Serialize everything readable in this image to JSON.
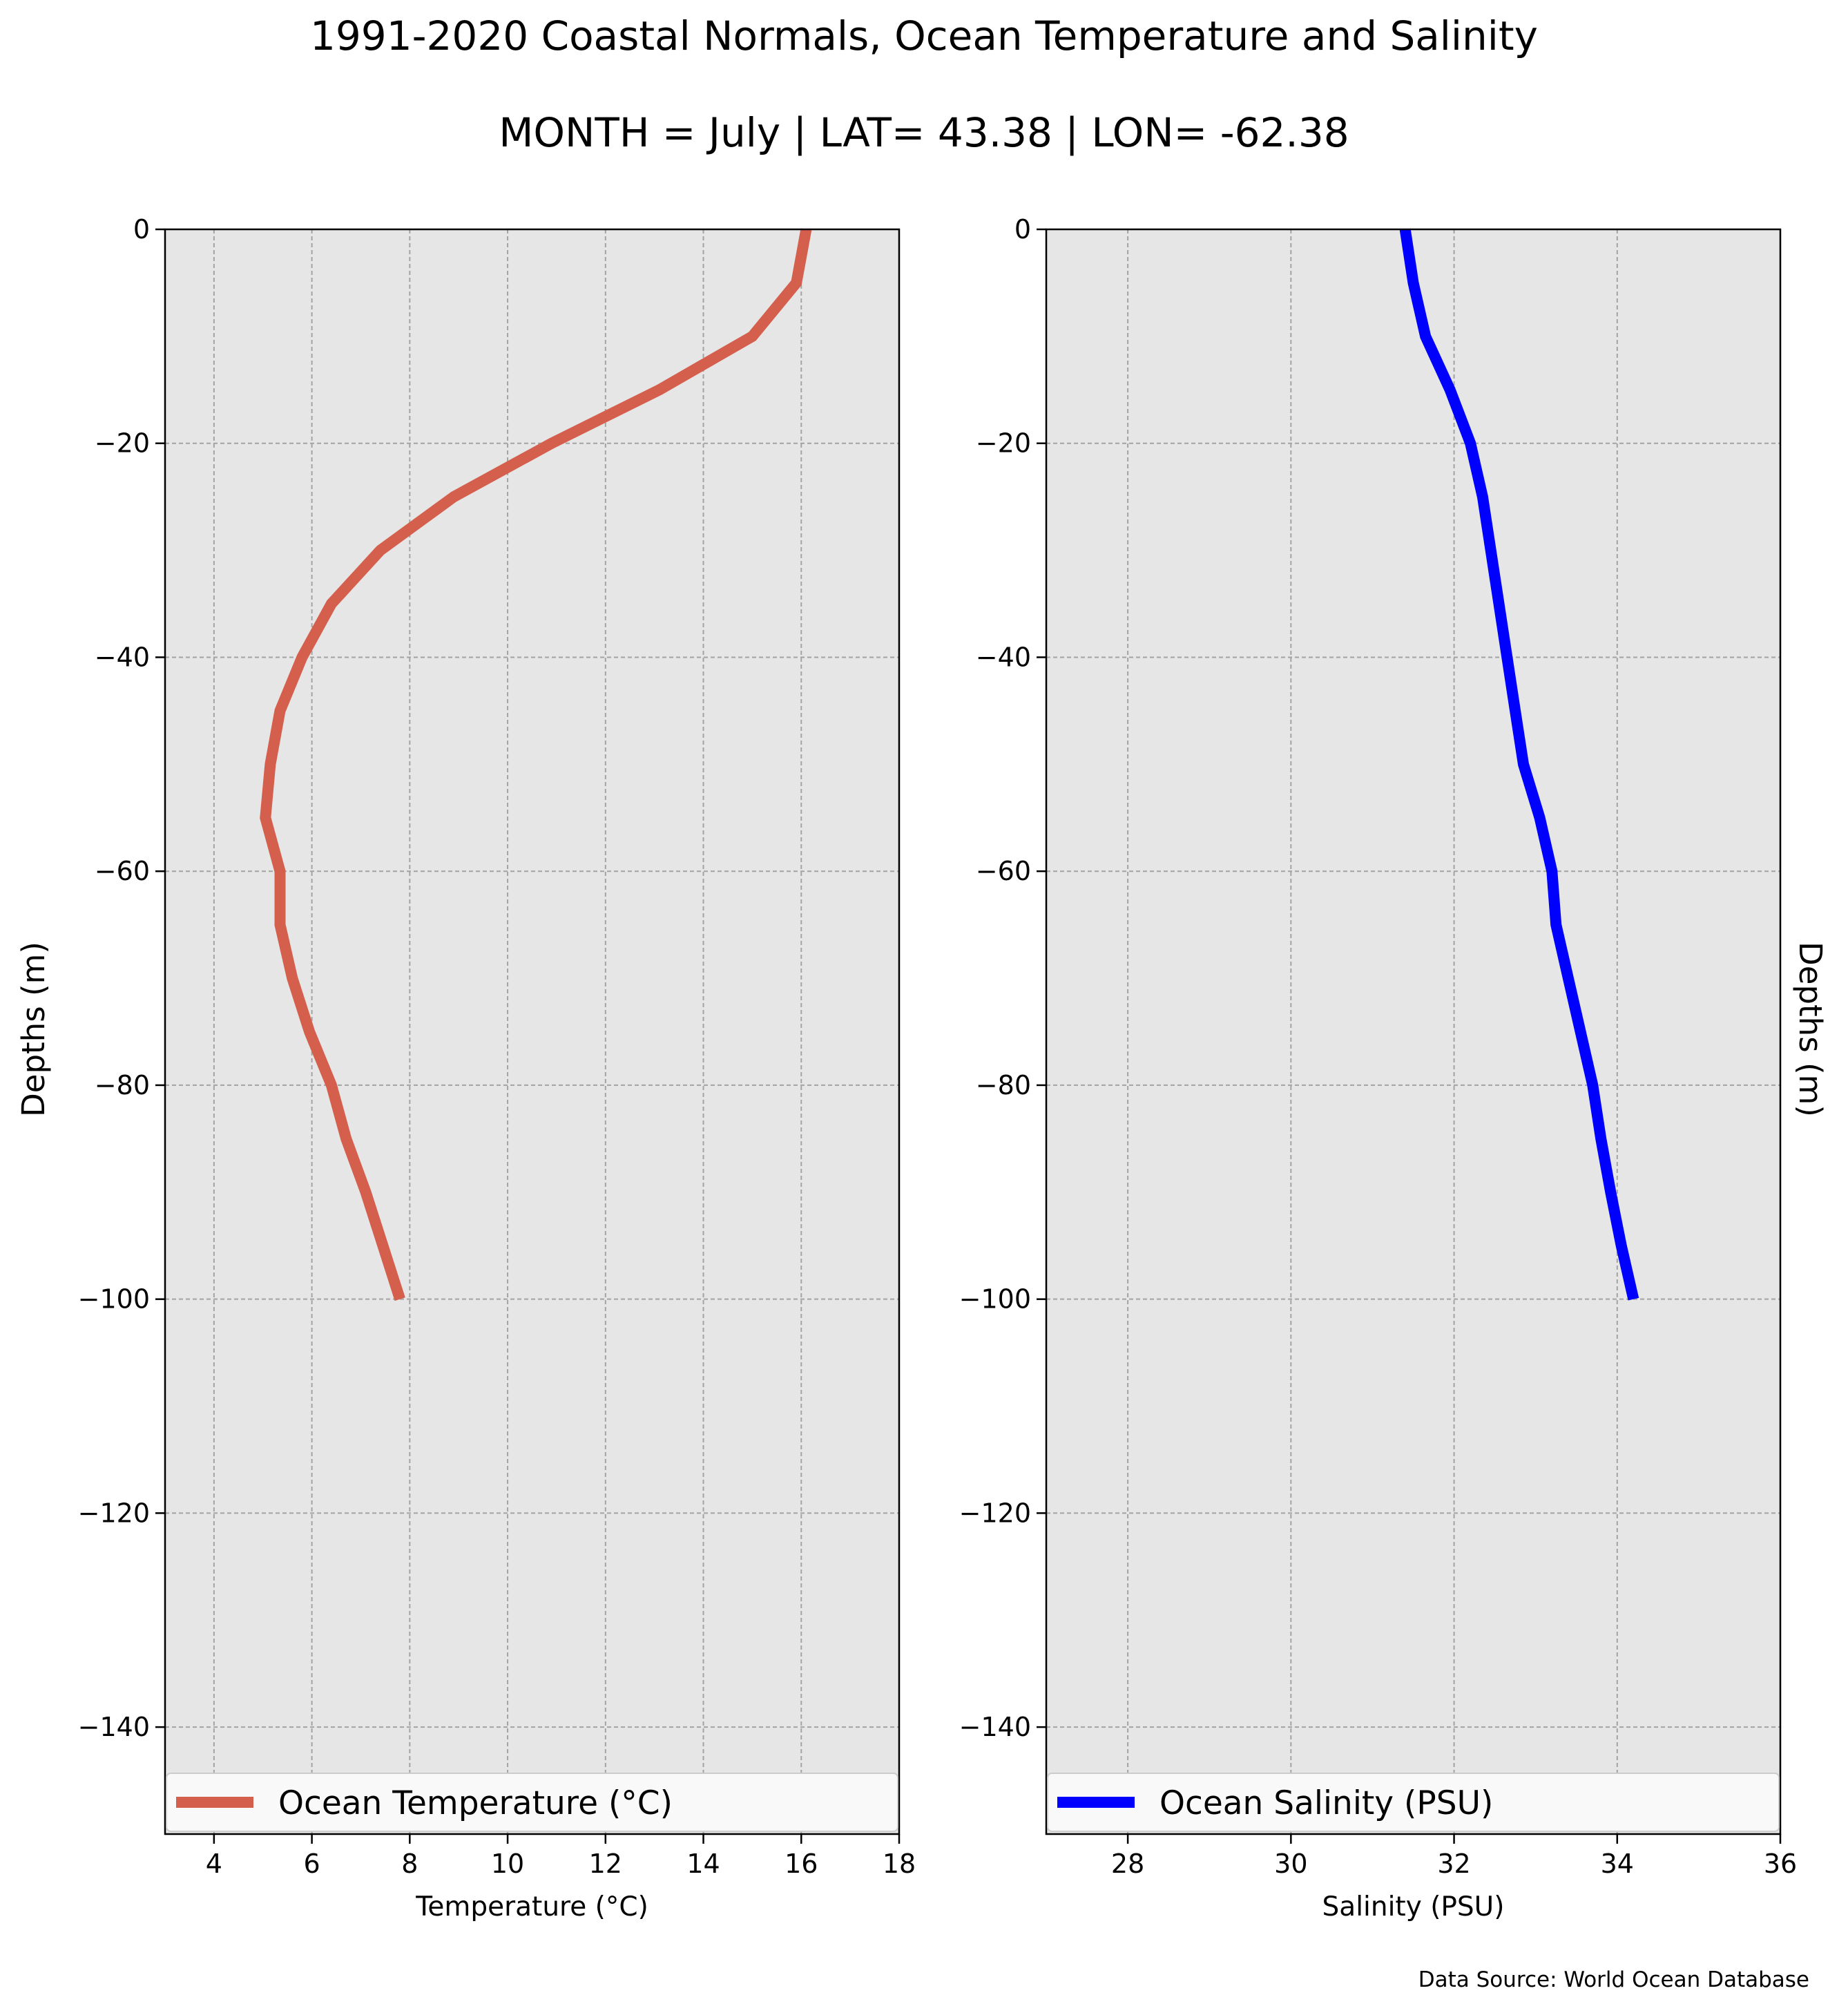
{
  "figure": {
    "title": "1991-2020 Coastal Normals, Ocean Temperature and Salinity",
    "subtitle": "MONTH = July | LAT= 43.38 | LON= -62.38",
    "source_note": "Data Source: World Ocean Database",
    "left_ylabel": "Depths (m)",
    "right_ylabel": "Depths (m)"
  },
  "chart_data": [
    {
      "type": "line",
      "orientation": "vertical-profile",
      "title": "",
      "xlabel": "Temperature ($^\\circ$C)",
      "xlabel_display": "Temperature (°C)",
      "ylabel": "Depths (m)",
      "xlim": [
        3,
        18
      ],
      "ylim": [
        -150,
        0
      ],
      "xticks": [
        4,
        6,
        8,
        10,
        12,
        14,
        16,
        18
      ],
      "yticks": [
        0,
        -20,
        -40,
        -60,
        -80,
        -100,
        -120,
        -140
      ],
      "ytick_labels": [
        "0",
        "−20",
        "−40",
        "−60",
        "−80",
        "−100",
        "−120",
        "−140"
      ],
      "grid": true,
      "legend_position": "bottom",
      "background": "#e6e6e6",
      "series": [
        {
          "name": "Ocean Temperature (°C)",
          "color": "#d55f4d",
          "x": [
            16.1,
            15.9,
            15.0,
            13.1,
            10.9,
            8.9,
            7.4,
            6.4,
            5.8,
            5.35,
            5.15,
            5.05,
            5.35,
            5.35,
            5.6,
            5.95,
            6.4,
            6.7,
            7.1,
            7.45,
            7.8
          ],
          "y": [
            0,
            -5,
            -10,
            -15,
            -20,
            -25,
            -30,
            -35,
            -40,
            -45,
            -50,
            -55,
            -60,
            -65,
            -70,
            -75,
            -80,
            -85,
            -90,
            -95,
            -100
          ]
        }
      ]
    },
    {
      "type": "line",
      "orientation": "vertical-profile",
      "title": "",
      "xlabel": "Salinity (PSU)",
      "ylabel": "Depths (m)",
      "xlim": [
        27,
        36
      ],
      "ylim": [
        -150,
        0
      ],
      "xticks": [
        28,
        30,
        32,
        34,
        36
      ],
      "yticks": [
        0,
        -20,
        -40,
        -60,
        -80,
        -100,
        -120,
        -140
      ],
      "ytick_labels": [
        "0",
        "−20",
        "−40",
        "−60",
        "−80",
        "−100",
        "−120",
        "−140"
      ],
      "grid": true,
      "legend_position": "bottom",
      "background": "#e6e6e6",
      "series": [
        {
          "name": "Ocean Salinity (PSU)",
          "color": "#0000ff",
          "x": [
            31.4,
            31.5,
            31.65,
            31.95,
            32.2,
            32.35,
            32.45,
            32.55,
            32.65,
            32.75,
            32.85,
            33.05,
            33.2,
            33.25,
            33.4,
            33.55,
            33.7,
            33.8,
            33.92,
            34.05,
            34.2
          ],
          "y": [
            0,
            -5,
            -10,
            -15,
            -20,
            -25,
            -30,
            -35,
            -40,
            -45,
            -50,
            -55,
            -60,
            -65,
            -70,
            -75,
            -80,
            -85,
            -90,
            -95,
            -100
          ]
        }
      ]
    }
  ]
}
